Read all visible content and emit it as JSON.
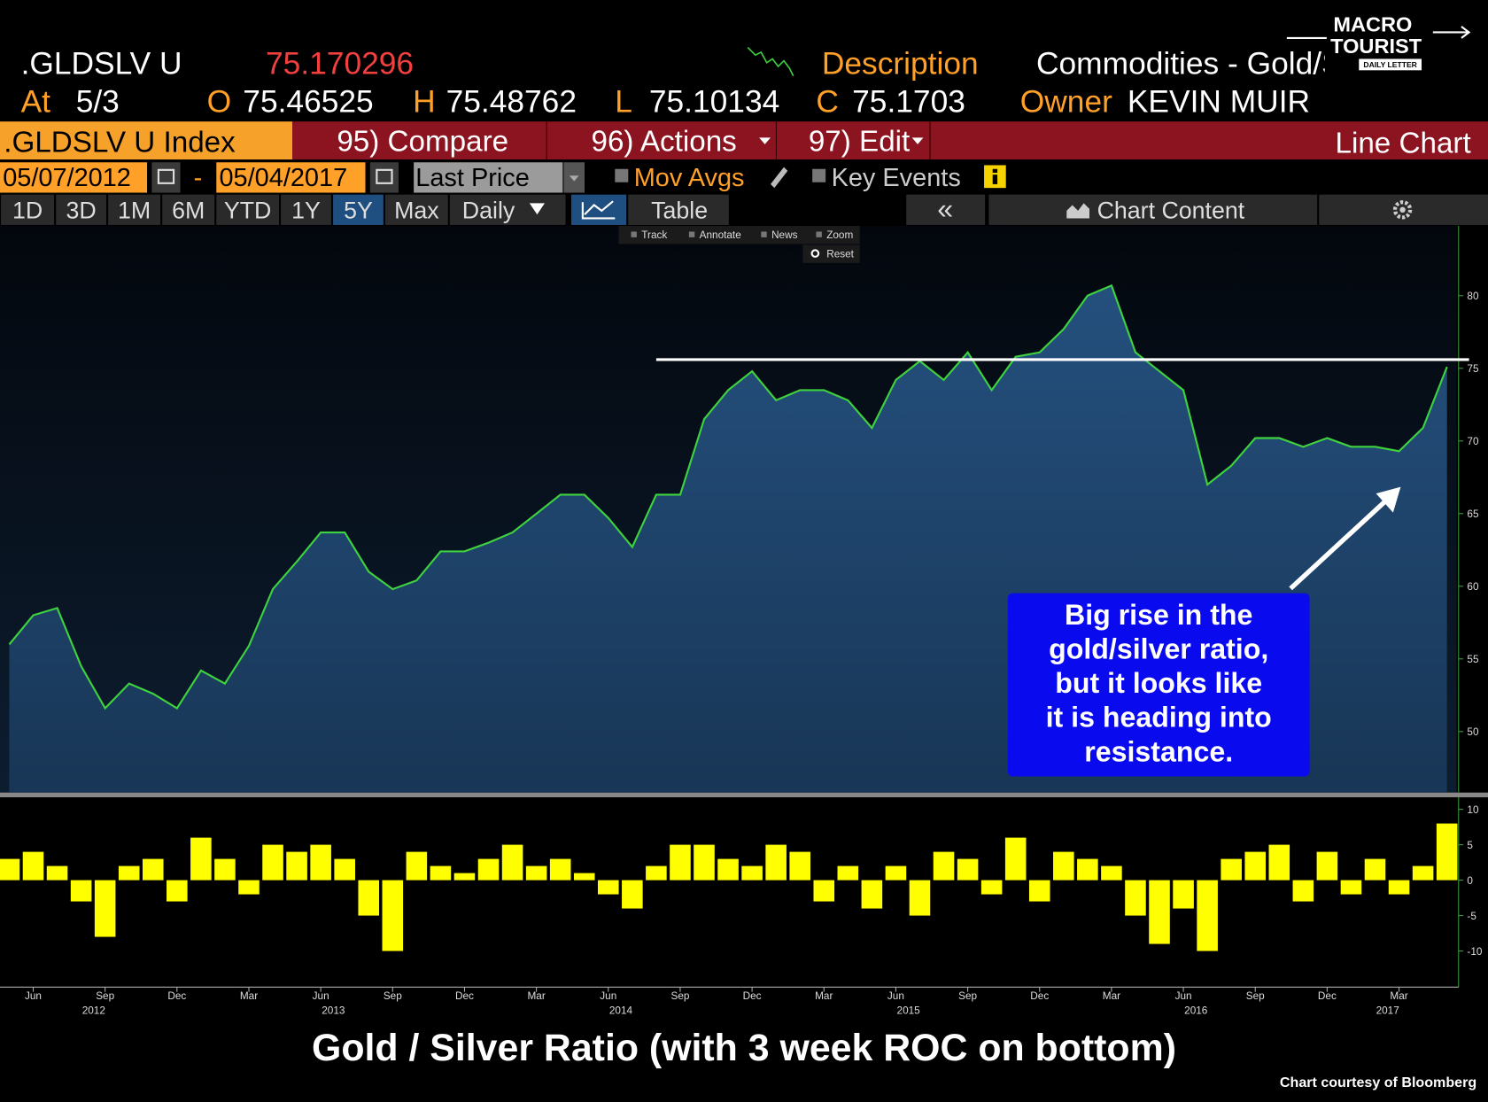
{
  "terminal": {
    "ticker": ".GLDSLV U",
    "last": "75.170296",
    "description_label": "Description",
    "description": "Commodities - Gold/Silv",
    "at_label": "At",
    "date": "5/3",
    "open_label": "O",
    "open": "75.46525",
    "high_label": "H",
    "high": "75.48762",
    "low_label": "L",
    "low": "75.10134",
    "close_label": "C",
    "close": "75.1703",
    "owner_label": "Owner",
    "owner": "KEVIN MUIR",
    "security": ".GLDSLV U Index",
    "menu": [
      "95) Compare",
      "96) Actions",
      "97) Edit"
    ],
    "view": "Line Chart",
    "start_date": "05/07/2012",
    "date_sep": "-",
    "end_date": "05/04/2017",
    "field": "Last Price",
    "options": [
      "Mov Avgs",
      "Key Events"
    ],
    "periods": [
      "1D",
      "3D",
      "1M",
      "6M",
      "YTD",
      "1Y",
      "5Y",
      "Max",
      "Daily"
    ],
    "active_period": 6,
    "tabs": [
      "Table",
      "«",
      "Chart Content"
    ],
    "tools": [
      "Track",
      "Annotate",
      "News",
      "Zoom"
    ],
    "reset": "Reset"
  },
  "logo": {
    "line1": "MACRO",
    "line2": "TOURIST",
    "line3": "DAILY LETTER"
  },
  "chart_data": [
    {
      "type": "area",
      "title": "Gold / Silver Ratio (with 3 week ROC on bottom)",
      "color": "#3fd23f",
      "fill": "#1d3f66",
      "x": [
        "2012-05",
        "2012-06",
        "2012-07",
        "2012-08",
        "2012-09",
        "2012-10",
        "2012-11",
        "2012-12",
        "2013-01",
        "2013-02",
        "2013-03",
        "2013-04",
        "2013-05",
        "2013-06",
        "2013-07",
        "2013-08",
        "2013-09",
        "2013-10",
        "2013-11",
        "2013-12",
        "2014-01",
        "2014-02",
        "2014-03",
        "2014-04",
        "2014-05",
        "2014-06",
        "2014-07",
        "2014-08",
        "2014-09",
        "2014-10",
        "2014-11",
        "2014-12",
        "2015-01",
        "2015-02",
        "2015-03",
        "2015-04",
        "2015-05",
        "2015-06",
        "2015-07",
        "2015-08",
        "2015-09",
        "2015-10",
        "2015-11",
        "2015-12",
        "2016-01",
        "2016-02",
        "2016-03",
        "2016-04",
        "2016-05",
        "2016-06",
        "2016-07",
        "2016-08",
        "2016-09",
        "2016-10",
        "2016-11",
        "2016-12",
        "2017-01",
        "2017-02",
        "2017-03",
        "2017-04",
        "2017-05"
      ],
      "values": [
        56,
        58,
        58.5,
        54.5,
        51.6,
        53.3,
        52.6,
        51.6,
        54.2,
        53.3,
        55.9,
        59.8,
        61.7,
        63.7,
        63.7,
        61,
        59.8,
        60.4,
        62.4,
        62.4,
        63,
        63.7,
        65,
        66.3,
        66.3,
        64.7,
        62.7,
        66.3,
        66.3,
        71.5,
        73.5,
        74.8,
        72.8,
        73.5,
        73.5,
        72.8,
        70.9,
        74.2,
        75.5,
        74.2,
        76.1,
        73.5,
        75.8,
        76.1,
        77.7,
        80,
        80.7,
        76.1,
        74.8,
        73.5,
        67,
        68.3,
        70.2,
        70.2,
        69.6,
        70.2,
        69.6,
        69.6,
        69.3,
        70.9,
        75.1
      ],
      "ylim": [
        45.8,
        84.8
      ],
      "yticks": [
        50,
        55,
        60,
        65,
        70,
        75,
        80
      ],
      "hline": {
        "value": 75.6,
        "from": "2014-08"
      },
      "annotation": [
        "Big rise in the",
        "gold/silver ratio,",
        "but it looks like",
        "it is heading into",
        "resistance."
      ]
    },
    {
      "type": "bar",
      "color": "#ffff00",
      "x": [
        "2012-05",
        "2012-06",
        "2012-07",
        "2012-08",
        "2012-09",
        "2012-10",
        "2012-11",
        "2012-12",
        "2013-01",
        "2013-02",
        "2013-03",
        "2013-04",
        "2013-05",
        "2013-06",
        "2013-07",
        "2013-08",
        "2013-09",
        "2013-10",
        "2013-11",
        "2013-12",
        "2014-01",
        "2014-02",
        "2014-03",
        "2014-04",
        "2014-05",
        "2014-06",
        "2014-07",
        "2014-08",
        "2014-09",
        "2014-10",
        "2014-11",
        "2014-12",
        "2015-01",
        "2015-02",
        "2015-03",
        "2015-04",
        "2015-05",
        "2015-06",
        "2015-07",
        "2015-08",
        "2015-09",
        "2015-10",
        "2015-11",
        "2015-12",
        "2016-01",
        "2016-02",
        "2016-03",
        "2016-04",
        "2016-05",
        "2016-06",
        "2016-07",
        "2016-08",
        "2016-09",
        "2016-10",
        "2016-11",
        "2016-12",
        "2017-01",
        "2017-02",
        "2017-03",
        "2017-04",
        "2017-05"
      ],
      "values": [
        3,
        4,
        2,
        -3,
        -8,
        2,
        3,
        -3,
        6,
        3,
        -2,
        5,
        4,
        5,
        3,
        -5,
        -10,
        4,
        2,
        1,
        3,
        5,
        2,
        3,
        1,
        -2,
        -4,
        2,
        5,
        5,
        3,
        2,
        5,
        4,
        -3,
        2,
        -4,
        2,
        -5,
        4,
        3,
        -2,
        6,
        -3,
        4,
        3,
        2,
        -5,
        -9,
        -4,
        -10,
        3,
        4,
        5,
        -3,
        4,
        -2,
        3,
        -2,
        2,
        8
      ],
      "ylim": [
        -15.1,
        11.7
      ],
      "yticks": [
        10,
        5,
        0,
        -5,
        -10
      ],
      "xticks": [
        {
          "value": "2012-06",
          "label": "Jun"
        },
        {
          "value": "2012-09",
          "label": "Sep"
        },
        {
          "value": "2012-12",
          "label": "Dec"
        },
        {
          "value": "2013-03",
          "label": "Mar"
        },
        {
          "value": "2013-06",
          "label": "Jun"
        },
        {
          "value": "2013-09",
          "label": "Sep"
        },
        {
          "value": "2013-12",
          "label": "Dec"
        },
        {
          "value": "2014-03",
          "label": "Mar"
        },
        {
          "value": "2014-06",
          "label": "Jun"
        },
        {
          "value": "2014-09",
          "label": "Sep"
        },
        {
          "value": "2014-12",
          "label": "Dec"
        },
        {
          "value": "2015-03",
          "label": "Mar"
        },
        {
          "value": "2015-06",
          "label": "Jun"
        },
        {
          "value": "2015-09",
          "label": "Sep"
        },
        {
          "value": "2015-12",
          "label": "Dec"
        },
        {
          "value": "2016-03",
          "label": "Mar"
        },
        {
          "value": "2016-06",
          "label": "Jun"
        },
        {
          "value": "2016-09",
          "label": "Sep"
        },
        {
          "value": "2016-12",
          "label": "Dec"
        },
        {
          "value": "2017-03",
          "label": "Mar"
        }
      ],
      "year_labels": [
        {
          "value": "2012-09",
          "label": "2012"
        },
        {
          "value": "2013-07",
          "label": "2013"
        },
        {
          "value": "2014-07",
          "label": "2014"
        },
        {
          "value": "2015-07",
          "label": "2015"
        },
        {
          "value": "2016-07",
          "label": "2016"
        },
        {
          "value": "2017-03",
          "label": "2017"
        }
      ]
    }
  ],
  "source": "Chart courtesy of Bloomberg"
}
